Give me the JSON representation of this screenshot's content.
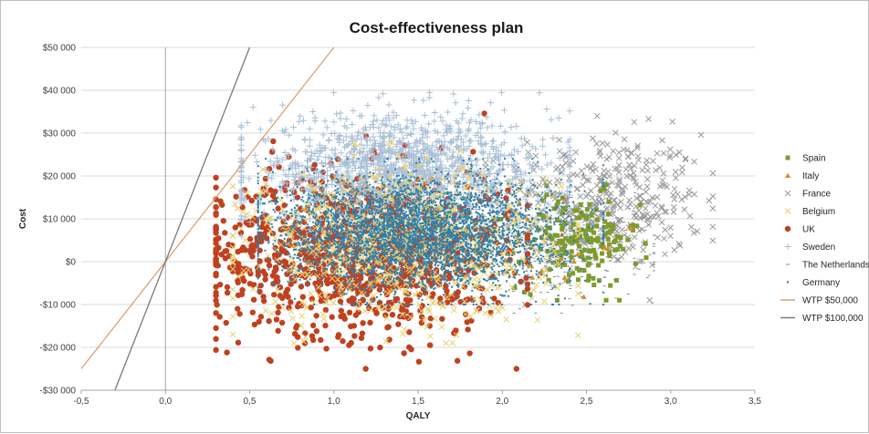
{
  "chart_data": {
    "type": "scatter",
    "title": "Cost-effectiveness plan",
    "xlabel": "QALY",
    "ylabel": "Cost",
    "xlim": [
      -0.5,
      3.5
    ],
    "ylim": [
      -30000,
      50000
    ],
    "x_ticks": [
      -0.5,
      0.0,
      0.5,
      1.0,
      1.5,
      2.0,
      2.5,
      3.0,
      3.5
    ],
    "x_tick_labels": [
      "-0,5",
      "0,0",
      "0,5",
      "1,0",
      "1,5",
      "2,0",
      "2,5",
      "3,0",
      "3,5"
    ],
    "y_ticks": [
      -30000,
      -20000,
      -10000,
      0,
      10000,
      20000,
      30000,
      40000,
      50000
    ],
    "y_tick_labels": [
      "-$30 000",
      "-$20 000",
      "-$10 000",
      "$0",
      "$10 000",
      "$20 000",
      "$30 000",
      "$40 000",
      "$50 000"
    ],
    "grid": "horizontal",
    "legend_position": "right",
    "series": [
      {
        "name": "Spain",
        "marker": "square",
        "color": "#7f9a2e",
        "cloud": {
          "x_mean": 2.45,
          "x_sd": 0.18,
          "y_mean": 4500,
          "y_sd": 5500,
          "count": 180,
          "x_range": [
            1.8,
            3.0
          ],
          "y_range": [
            -9000,
            22000
          ]
        }
      },
      {
        "name": "Italy",
        "marker": "triangle",
        "color": "#d98a2b",
        "cloud": {
          "x_mean": 2.1,
          "x_sd": 0.3,
          "y_mean": 4000,
          "y_sd": 6000,
          "count": 40,
          "x_range": [
            1.4,
            2.8
          ],
          "y_range": [
            -9000,
            20000
          ]
        }
      },
      {
        "name": "France",
        "marker": "x",
        "color": "#9a9a9a",
        "cloud": {
          "x_mean": 2.6,
          "x_sd": 0.3,
          "y_mean": 14000,
          "y_sd": 8000,
          "count": 420,
          "x_range": [
            1.9,
            3.25
          ],
          "y_range": [
            -10000,
            34000
          ]
        }
      },
      {
        "name": "Belgium",
        "marker": "x",
        "color": "#e8cf72",
        "cloud": {
          "x_mean": 1.4,
          "x_sd": 0.45,
          "y_mean": 4000,
          "y_sd": 8500,
          "count": 900,
          "x_range": [
            0.4,
            2.45
          ],
          "y_range": [
            -19000,
            28000
          ]
        }
      },
      {
        "name": "UK",
        "marker": "circle",
        "color": "#c0411f",
        "cloud": {
          "x_mean": 1.15,
          "x_sd": 0.45,
          "y_mean": 2000,
          "y_sd": 9500,
          "count": 1100,
          "x_range": [
            0.3,
            2.15
          ],
          "y_range": [
            -25000,
            36000
          ]
        }
      },
      {
        "name": "Sweden",
        "marker": "plus",
        "color": "#a9bfd6",
        "cloud": {
          "x_mean": 1.4,
          "x_sd": 0.45,
          "y_mean": 21000,
          "y_sd": 6500,
          "count": 1400,
          "x_range": [
            0.45,
            2.4
          ],
          "y_range": [
            3000,
            39500
          ]
        }
      },
      {
        "name": "The Netherlands",
        "marker": "dash",
        "color": "#7d8e9c",
        "cloud": {
          "x_mean": 2.35,
          "x_sd": 0.3,
          "y_mean": 3000,
          "y_sd": 6000,
          "count": 250,
          "x_range": [
            1.8,
            2.9
          ],
          "y_range": [
            -12000,
            20000
          ]
        }
      },
      {
        "name": "Germany",
        "marker": "dot",
        "color": "#2f7fa8",
        "cloud": {
          "x_mean": 1.5,
          "x_sd": 0.42,
          "y_mean": 6500,
          "y_sd": 6500,
          "count": 4200,
          "x_range": [
            0.55,
            2.6
          ],
          "y_range": [
            -10000,
            24000
          ]
        }
      },
      {
        "name": "WTP $50,000",
        "type": "line",
        "color": "#e0a070",
        "points": [
          [
            -0.5,
            -25000
          ],
          [
            1.0,
            50000
          ]
        ]
      },
      {
        "name": "WTP $100,000",
        "type": "line",
        "color": "#7a7a7a",
        "points": [
          [
            -0.3,
            -30000
          ],
          [
            0.5,
            50000
          ]
        ]
      }
    ]
  }
}
